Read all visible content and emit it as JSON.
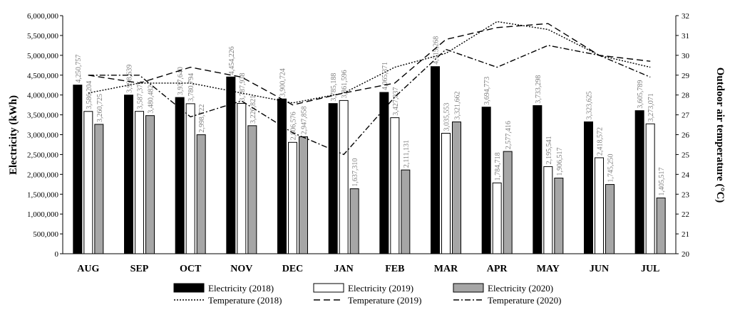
{
  "chart_data": {
    "type": "bar",
    "title": "",
    "categories": [
      "AUG",
      "SEP",
      "OCT",
      "NOV",
      "DEC",
      "JAN",
      "FEB",
      "MAR",
      "APR",
      "MAY",
      "JUN",
      "JUL"
    ],
    "ylabel": "Electricity (kWh)",
    "y2label": "Outdoor air temperature (°C)",
    "ylim": [
      0,
      6000000
    ],
    "y2lim": [
      20,
      32
    ],
    "yticks": [
      "0",
      "500,000",
      "1,000,000",
      "1,500,000",
      "2,000,000",
      "2,500,000",
      "3,000,000",
      "3,500,000",
      "4,000,000",
      "4,500,000",
      "5,000,000",
      "5,500,000",
      "6,000,000"
    ],
    "y2ticks": [
      "20",
      "21",
      "22",
      "23",
      "24",
      "25",
      "26",
      "27",
      "28",
      "29",
      "30",
      "31",
      "32"
    ],
    "bar_series": [
      {
        "name": "Electricity (2018)",
        "color": "#000000",
        "values": [
          4250757,
          3998639,
          3937640,
          4454226,
          3900724,
          3785188,
          4065371,
          4715268,
          3694773,
          3733298,
          3323625,
          3605789
        ],
        "labels": [
          "4,250,757",
          "3,998,639",
          "3,937,640",
          "4,454,226",
          "3,900,724",
          "3,785,188",
          "4,065,371",
          "4,715,268",
          "3,694,773",
          "3,733,298",
          "3,323,625",
          "3,605,789"
        ]
      },
      {
        "name": "Electricity (2019)",
        "color": "#ffffff",
        "values": [
          3586204,
          3587375,
          3780794,
          3787938,
          2806576,
          3861596,
          3427837,
          3035553,
          1784718,
          2195541,
          2418572,
          3273071
        ],
        "labels": [
          "3,586,204",
          "3,587,375",
          "3,780,794",
          "3,787,938",
          "2,806,576",
          "3,861,596",
          "3,427,837",
          "3,035,553",
          "1,784,718",
          "2,195,541",
          "2,418,572",
          "3,273,071"
        ]
      },
      {
        "name": "Electricity (2020)",
        "color": "#a6a6a6",
        "values": [
          3260725,
          3480482,
          2998722,
          3226821,
          2947858,
          1637310,
          2111131,
          3321662,
          2577416,
          1906517,
          1745250,
          1405517
        ],
        "labels": [
          "3,260,725",
          "3,480,482",
          "2,998,722",
          "3,226,821",
          "2,947,858",
          "1,637,310",
          "2,111,131",
          "3,321,662",
          "2,577,416",
          "1,906,517",
          "1,745,250",
          "1,405,517"
        ]
      }
    ],
    "line_series": [
      {
        "name": "Temperature (2018)",
        "dash": "dotted",
        "values": [
          28.1,
          28.6,
          28.6,
          28.1,
          27.6,
          28.1,
          29.4,
          30.1,
          31.7,
          31.3,
          30.0,
          29.4
        ]
      },
      {
        "name": "Temperature (2019)",
        "dash": "dashed",
        "values": [
          29.0,
          28.6,
          29.4,
          28.9,
          27.5,
          28.1,
          28.6,
          30.8,
          31.4,
          31.6,
          30.0,
          29.7
        ]
      },
      {
        "name": "Temperature (2020)",
        "dash": "dashdot",
        "values": [
          29.0,
          29.0,
          26.9,
          27.7,
          26.1,
          25.0,
          27.9,
          30.3,
          29.4,
          30.5,
          30.0,
          28.9
        ]
      }
    ],
    "legend": [
      "Electricity (2018)",
      "Electricity (2019)",
      "Electricity (2020)",
      "Temperature (2018)",
      "Temperature (2019)",
      "Temperature (2020)"
    ],
    "legend_position": "bottom",
    "grid": false
  }
}
